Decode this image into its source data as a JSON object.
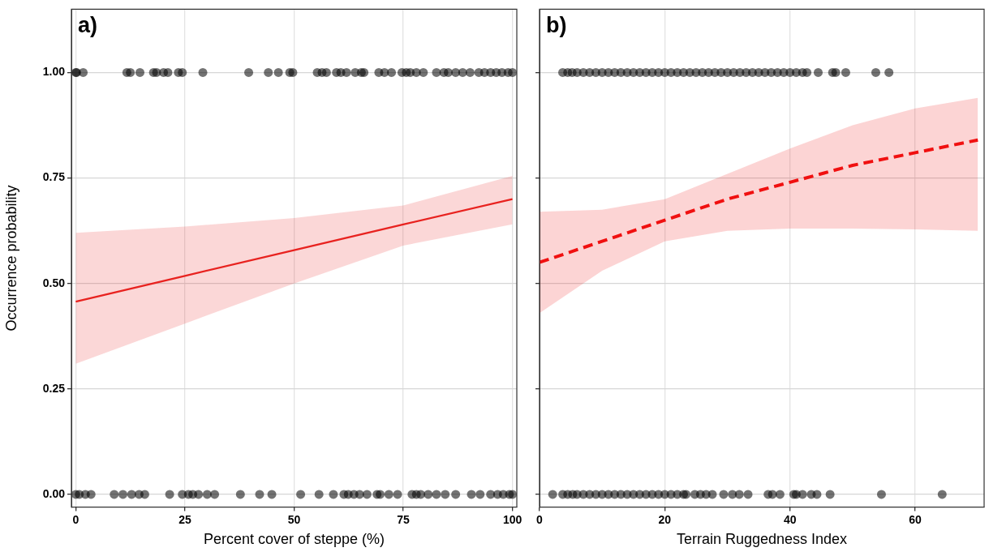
{
  "chart_data": [
    {
      "type": "scatter",
      "ylabel": "Occurrence probability",
      "xlabel": "Percent cover of steppe (%)",
      "annotations": [
        "a)"
      ],
      "xlim": [
        -1,
        101
      ],
      "xticks": [
        0,
        25,
        50,
        75,
        100
      ],
      "ylim": [
        -0.03,
        1.15
      ],
      "yticks": [
        {
          "value": 0,
          "label": "0.00"
        },
        {
          "value": 0.25,
          "label": "0.25"
        },
        {
          "value": 0.5,
          "label": "0.50"
        },
        {
          "value": 0.75,
          "label": "0.75"
        },
        {
          "value": 1,
          "label": "1.00"
        }
      ],
      "grid": true,
      "legend": false,
      "series": [
        {
          "marker": "circle",
          "color": "#000000",
          "x": [
            0,
            0.2,
            1.7,
            11.7,
            12.5,
            14.7,
            17.8,
            18.5,
            20.1,
            21.1,
            23.5,
            24.4,
            29.1,
            39.6,
            44.1,
            46.4,
            49,
            49.7,
            55.3,
            56.4,
            57.4,
            59.7,
            60.7,
            62,
            64,
            65.4,
            66,
            69.4,
            70.7,
            72.3,
            74.7,
            75.7,
            76.6,
            78,
            79.6,
            82.6,
            84.3,
            85.3,
            87,
            88.6,
            90.3,
            92.3,
            93.6,
            95,
            96.3,
            97.6,
            99,
            100,
            0,
            0.8,
            2.2,
            3.5,
            8.8,
            10.8,
            12.8,
            14.5,
            15.8,
            21.5,
            24.4,
            25.8,
            26.8,
            28.1,
            30.1,
            31.8,
            37.7,
            42.1,
            44.9,
            51.5,
            55.7,
            59,
            61.4,
            62.4,
            63.7,
            65,
            66.7,
            69,
            69.7,
            71.7,
            73.7,
            77,
            78,
            79,
            80.7,
            82.6,
            84.6,
            87,
            90.6,
            92.6,
            95,
            96.6,
            97.9,
            99.3,
            100
          ],
          "values": [
            1,
            1,
            1,
            1,
            1,
            1,
            1,
            1,
            1,
            1,
            1,
            1,
            1,
            1,
            1,
            1,
            1,
            1,
            1,
            1,
            1,
            1,
            1,
            1,
            1,
            1,
            1,
            1,
            1,
            1,
            1,
            1,
            1,
            1,
            1,
            1,
            1,
            1,
            1,
            1,
            1,
            1,
            1,
            1,
            1,
            1,
            1,
            1,
            0,
            0,
            0,
            0,
            0,
            0,
            0,
            0,
            0,
            0,
            0,
            0,
            0,
            0,
            0,
            0,
            0,
            0,
            0,
            0,
            0,
            0,
            0,
            0,
            0,
            0,
            0,
            0,
            0,
            0,
            0,
            0,
            0,
            0,
            0,
            0,
            0,
            0,
            0,
            0,
            0,
            0,
            0,
            0,
            0
          ]
        },
        {
          "type": "line",
          "color": "#e8221f",
          "line_style": "solid",
          "x": [
            0,
            25,
            50,
            75,
            100
          ],
          "values": [
            0.457,
            0.518,
            0.579,
            0.64,
            0.7
          ],
          "lower": [
            0.31,
            0.405,
            0.5,
            0.59,
            0.64
          ],
          "upper": [
            0.62,
            0.635,
            0.655,
            0.685,
            0.755
          ]
        }
      ]
    },
    {
      "type": "scatter",
      "xlabel": "Terrain Ruggedness Index",
      "annotations": [
        "b)"
      ],
      "tick_labels": "x",
      "xlim": [
        0,
        71
      ],
      "xticks": [
        0,
        20,
        40,
        60
      ],
      "ylim": [
        -0.03,
        1.15
      ],
      "yticks": [
        0,
        0.25,
        0.5,
        0.75,
        1
      ],
      "grid": true,
      "legend": false,
      "series": [
        {
          "marker": "circle",
          "color": "#000000",
          "x": [
            3.7,
            4.5,
            5.2,
            6,
            7,
            8,
            9,
            10,
            11,
            12,
            13,
            14,
            15,
            16,
            17,
            18,
            19,
            20,
            21,
            22,
            23,
            24,
            25,
            26,
            27,
            28,
            29,
            30,
            31,
            32,
            33,
            34,
            35,
            36,
            37,
            38,
            39,
            40,
            41,
            42,
            42.7,
            44.5,
            46.8,
            47.3,
            48.9,
            53.7,
            55.8,
            2.1,
            3.7,
            4.5,
            5.3,
            6,
            7,
            8,
            9,
            10,
            11,
            12,
            13,
            14,
            15,
            16,
            17,
            18,
            19,
            20,
            21,
            22,
            23,
            23.4,
            24.8,
            25.7,
            26.6,
            27.6,
            29.4,
            30.8,
            31.9,
            33.3,
            36.5,
            37.2,
            38.4,
            40.6,
            41,
            42,
            43.4,
            44.3,
            46.4,
            54.6,
            64.3
          ],
          "values": [
            1,
            1,
            1,
            1,
            1,
            1,
            1,
            1,
            1,
            1,
            1,
            1,
            1,
            1,
            1,
            1,
            1,
            1,
            1,
            1,
            1,
            1,
            1,
            1,
            1,
            1,
            1,
            1,
            1,
            1,
            1,
            1,
            1,
            1,
            1,
            1,
            1,
            1,
            1,
            1,
            1,
            1,
            1,
            1,
            1,
            1,
            1,
            0,
            0,
            0,
            0,
            0,
            0,
            0,
            0,
            0,
            0,
            0,
            0,
            0,
            0,
            0,
            0,
            0,
            0,
            0,
            0,
            0,
            0,
            0,
            0,
            0,
            0,
            0,
            0,
            0,
            0,
            0,
            0,
            0,
            0,
            0,
            0,
            0,
            0,
            0,
            0,
            0,
            0
          ]
        },
        {
          "type": "line",
          "color": "#f01010",
          "line_style": "dashed",
          "x": [
            0,
            10,
            20,
            30,
            40,
            50,
            60,
            70
          ],
          "values": [
            0.55,
            0.6,
            0.65,
            0.7,
            0.74,
            0.78,
            0.81,
            0.84
          ],
          "lower": [
            0.43,
            0.53,
            0.6,
            0.625,
            0.63,
            0.63,
            0.628,
            0.625
          ],
          "upper": [
            0.67,
            0.675,
            0.7,
            0.76,
            0.82,
            0.875,
            0.915,
            0.94
          ]
        }
      ]
    }
  ]
}
